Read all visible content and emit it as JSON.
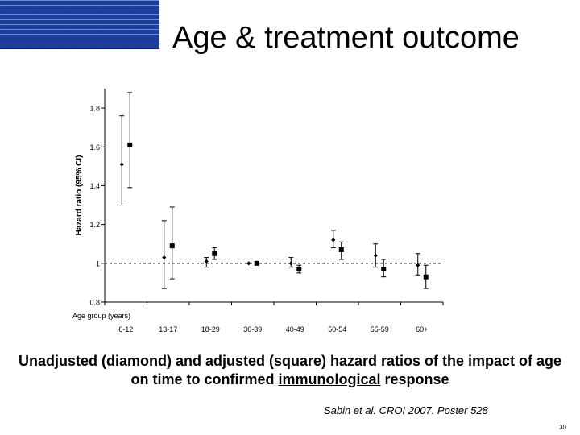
{
  "slide": {
    "title": "Age & treatment outcome",
    "caption_before": "Unadjusted (diamond) and adjusted (square) hazard ratios of the impact of age on time to confirmed ",
    "caption_underlined": "immunological",
    "caption_after": " response",
    "citation": "Sabin et al. CROI 2007. Poster 528",
    "page_number": "30",
    "logo_color": "#1f3f9f"
  },
  "chart_data": {
    "type": "scatter",
    "ylabel": "Hazard ratio (95% CI)",
    "xlabel": "Age group (years)",
    "ylim": [
      0.8,
      1.9
    ],
    "yticks": [
      "0.8",
      "1",
      "1.2",
      "1.4",
      "1.6",
      "1.8"
    ],
    "categories": [
      "6-12",
      "13-17",
      "18-29",
      "30-39",
      "40-49",
      "50-54",
      "55-59",
      "60+"
    ],
    "reference_line": 1,
    "series": [
      {
        "name": "Unadjusted (diamond)",
        "marker": "diamond",
        "values": [
          1.51,
          1.03,
          1.01,
          1.0,
          1.0,
          1.12,
          1.04,
          0.99
        ],
        "ci_low": [
          1.3,
          0.87,
          0.98,
          1.0,
          0.98,
          1.08,
          0.98,
          0.94
        ],
        "ci_high": [
          1.76,
          1.22,
          1.03,
          1.0,
          1.03,
          1.17,
          1.1,
          1.05
        ]
      },
      {
        "name": "Adjusted (square)",
        "marker": "square",
        "values": [
          1.61,
          1.09,
          1.05,
          1.0,
          0.97,
          1.07,
          0.97,
          0.93
        ],
        "ci_low": [
          1.39,
          0.92,
          1.02,
          1.0,
          0.95,
          1.02,
          0.93,
          0.87
        ],
        "ci_high": [
          1.88,
          1.29,
          1.08,
          1.0,
          0.99,
          1.11,
          1.02,
          0.99
        ]
      }
    ],
    "colors": {
      "marker": "#000000",
      "axis": "#000000",
      "reference": "#000000"
    }
  }
}
